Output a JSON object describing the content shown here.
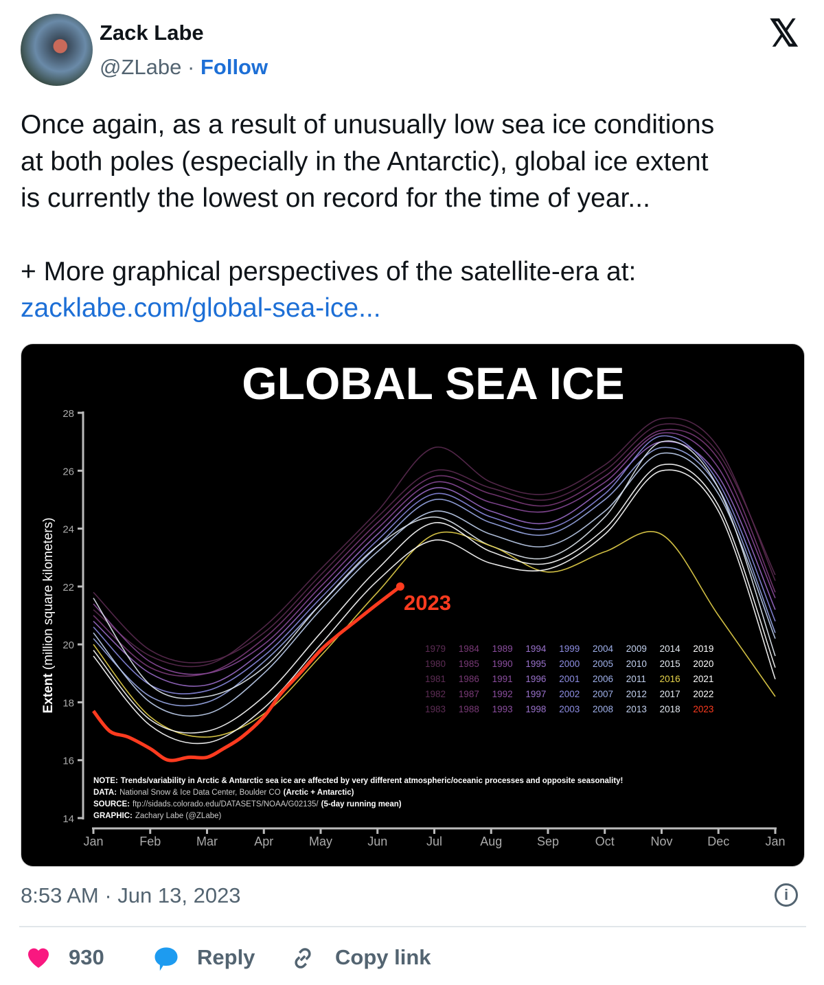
{
  "author": {
    "name": "Zack Labe",
    "handle": "@ZLabe",
    "separator": "·",
    "follow_label": "Follow"
  },
  "platform_icon": "x-logo-icon",
  "tweet": {
    "text_lines": [
      "Once again, as a result of unusually low sea ice conditions",
      "at both poles (especially in the Antarctic), global ice extent",
      "is currently the lowest on record for the time of year..."
    ],
    "text2": "+ More graphical perspectives of the satellite-era at:",
    "link": "zacklabe.com/global-sea-ice..."
  },
  "timestamp": "8:53 AM · Jun 13, 2023",
  "actions": {
    "likes": "930",
    "reply_label": "Reply",
    "copy_label": "Copy link"
  },
  "colors": {
    "accent": "#1d6fd6",
    "heart": "#f91880",
    "reply": "#1d9bf0",
    "highlight_2023": "#ff3b1f",
    "highlight_2016": "#e8d44a"
  },
  "chart_data": {
    "type": "line",
    "title": "GLOBAL SEA ICE",
    "ylabel_bold": "Extent",
    "ylabel": "(million square kilometers)",
    "ylim": [
      14,
      28
    ],
    "yticks": [
      "14",
      "16",
      "18",
      "20",
      "22",
      "24",
      "26",
      "28"
    ],
    "xticks": [
      "Jan",
      "Feb",
      "Mar",
      "Apr",
      "May",
      "Jun",
      "Jul",
      "Aug",
      "Sep",
      "Oct",
      "Nov",
      "Dec",
      "Jan"
    ],
    "grid": false,
    "series_x": "month start (Jan to following Jan)",
    "series": [
      {
        "name": "1979",
        "color": "#5a2a50",
        "values": [
          21.2,
          19.6,
          19.3,
          20.6,
          22.6,
          24.6,
          26.8,
          25.6,
          25.2,
          26.2,
          27.8,
          26.8,
          22.2
        ]
      },
      {
        "name": "1982",
        "color": "#5a2a50",
        "values": [
          21.8,
          19.8,
          19.4,
          20.4,
          22.4,
          24.4,
          26.0,
          25.4,
          25.0,
          26.0,
          27.6,
          26.6,
          22.4
        ]
      },
      {
        "name": "1986",
        "color": "#7a3a78",
        "values": [
          21.0,
          19.2,
          19.0,
          20.2,
          22.2,
          24.2,
          25.8,
          25.2,
          24.8,
          25.8,
          27.4,
          26.4,
          21.8
        ]
      },
      {
        "name": "1990",
        "color": "#8a4a9a",
        "values": [
          21.4,
          19.4,
          19.0,
          20.0,
          22.0,
          24.0,
          25.6,
          24.9,
          24.6,
          25.6,
          27.3,
          26.1,
          21.6
        ]
      },
      {
        "name": "1995",
        "color": "#9a6ac8",
        "values": [
          20.8,
          19.0,
          18.6,
          19.8,
          21.8,
          23.8,
          25.4,
          24.6,
          24.2,
          25.4,
          27.0,
          25.8,
          21.2
        ]
      },
      {
        "name": "2000",
        "color": "#8a8ae0",
        "values": [
          20.6,
          18.6,
          18.4,
          19.6,
          21.6,
          23.6,
          25.2,
          24.4,
          24.0,
          25.2,
          27.2,
          25.6,
          20.8
        ]
      },
      {
        "name": "2005",
        "color": "#9aaae8",
        "values": [
          20.2,
          18.2,
          18.0,
          19.4,
          21.4,
          23.4,
          25.0,
          24.2,
          23.8,
          25.0,
          26.8,
          25.4,
          20.4
        ]
      },
      {
        "name": "2010",
        "color": "#c0d0f0",
        "values": [
          20.4,
          18.0,
          17.6,
          19.0,
          21.2,
          23.2,
          24.6,
          23.8,
          23.4,
          24.6,
          26.6,
          25.2,
          20.2
        ]
      },
      {
        "name": "2014",
        "color": "#e0e8f0",
        "values": [
          21.6,
          18.6,
          18.2,
          19.2,
          21.4,
          23.4,
          24.4,
          23.4,
          23.0,
          24.4,
          27.0,
          25.4,
          19.6
        ]
      },
      {
        "name": "2016",
        "color": "#e8d44a",
        "values": [
          20.0,
          17.5,
          16.8,
          17.6,
          19.6,
          21.8,
          23.8,
          23.4,
          22.5,
          23.2,
          23.8,
          21.0,
          18.2
        ]
      },
      {
        "name": "2019",
        "color": "#ffffff",
        "values": [
          19.8,
          17.4,
          17.0,
          18.2,
          20.4,
          22.6,
          24.2,
          23.2,
          22.8,
          24.0,
          26.2,
          24.8,
          19.2
        ]
      },
      {
        "name": "2022",
        "color": "#ffffff",
        "values": [
          19.6,
          17.2,
          16.6,
          17.8,
          20.0,
          22.2,
          23.6,
          22.8,
          22.6,
          23.8,
          26.0,
          24.6,
          18.8
        ]
      }
    ],
    "highlight": {
      "name": "2023",
      "label": "2023",
      "color": "#ff3b1f",
      "dates": [
        "Jan 1",
        "Jan 10",
        "Jan 20",
        "Feb 1",
        "Feb 10",
        "Feb 20",
        "Mar 1",
        "Mar 10",
        "Mar 20",
        "Apr 1",
        "Apr 10",
        "Apr 20",
        "May 1",
        "May 10",
        "May 20",
        "Jun 1",
        "Jun 13"
      ],
      "values": [
        17.7,
        17.0,
        16.8,
        16.4,
        16.0,
        16.1,
        16.1,
        16.4,
        16.8,
        17.5,
        18.3,
        19.0,
        19.8,
        20.3,
        20.8,
        21.4,
        22.0
      ]
    },
    "legend": {
      "placement": "center-right",
      "columns": [
        {
          "color": "#5e2d56",
          "years": [
            "1979",
            "1980",
            "1981",
            "1982",
            "1983"
          ]
        },
        {
          "color": "#7a3a78",
          "years": [
            "1984",
            "1985",
            "1986",
            "1987",
            "1988"
          ]
        },
        {
          "color": "#8c4ea0",
          "years": [
            "1989",
            "1990",
            "1991",
            "1992",
            "1993"
          ]
        },
        {
          "color": "#9a72cc",
          "years": [
            "1994",
            "1995",
            "1996",
            "1997",
            "1998"
          ]
        },
        {
          "color": "#8e8ee4",
          "years": [
            "1999",
            "2000",
            "2001",
            "2002",
            "2003"
          ]
        },
        {
          "color": "#9fb0ea",
          "years": [
            "2004",
            "2005",
            "2006",
            "2007",
            "2008"
          ]
        },
        {
          "color": "#c4d2f0",
          "years": [
            "2009",
            "2010",
            "2011",
            "2012",
            "2013"
          ]
        },
        {
          "color": "#e4eaf2",
          "years": [
            "2014",
            "2015",
            "2016",
            "2017",
            "2018"
          ]
        },
        {
          "color": "#ffffff",
          "years": [
            "2019",
            "2020",
            "2021",
            "2022",
            "2023"
          ]
        }
      ]
    },
    "notes": [
      {
        "label": "NOTE:",
        "text": "Trends/variability in Arctic & Antarctic sea ice are affected by very different atmospheric/oceanic processes and opposite seasonality!"
      },
      {
        "label": "DATA:",
        "text": "National Snow & Ice Data Center, Boulder CO",
        "extra": "(Arctic + Antarctic)"
      },
      {
        "label": "SOURCE:",
        "text": "ftp://sidads.colorado.edu/DATASETS/NOAA/G02135/",
        "extra": "(5-day running mean)"
      },
      {
        "label": "GRAPHIC:",
        "text": "Zachary Labe (@ZLabe)"
      }
    ]
  }
}
